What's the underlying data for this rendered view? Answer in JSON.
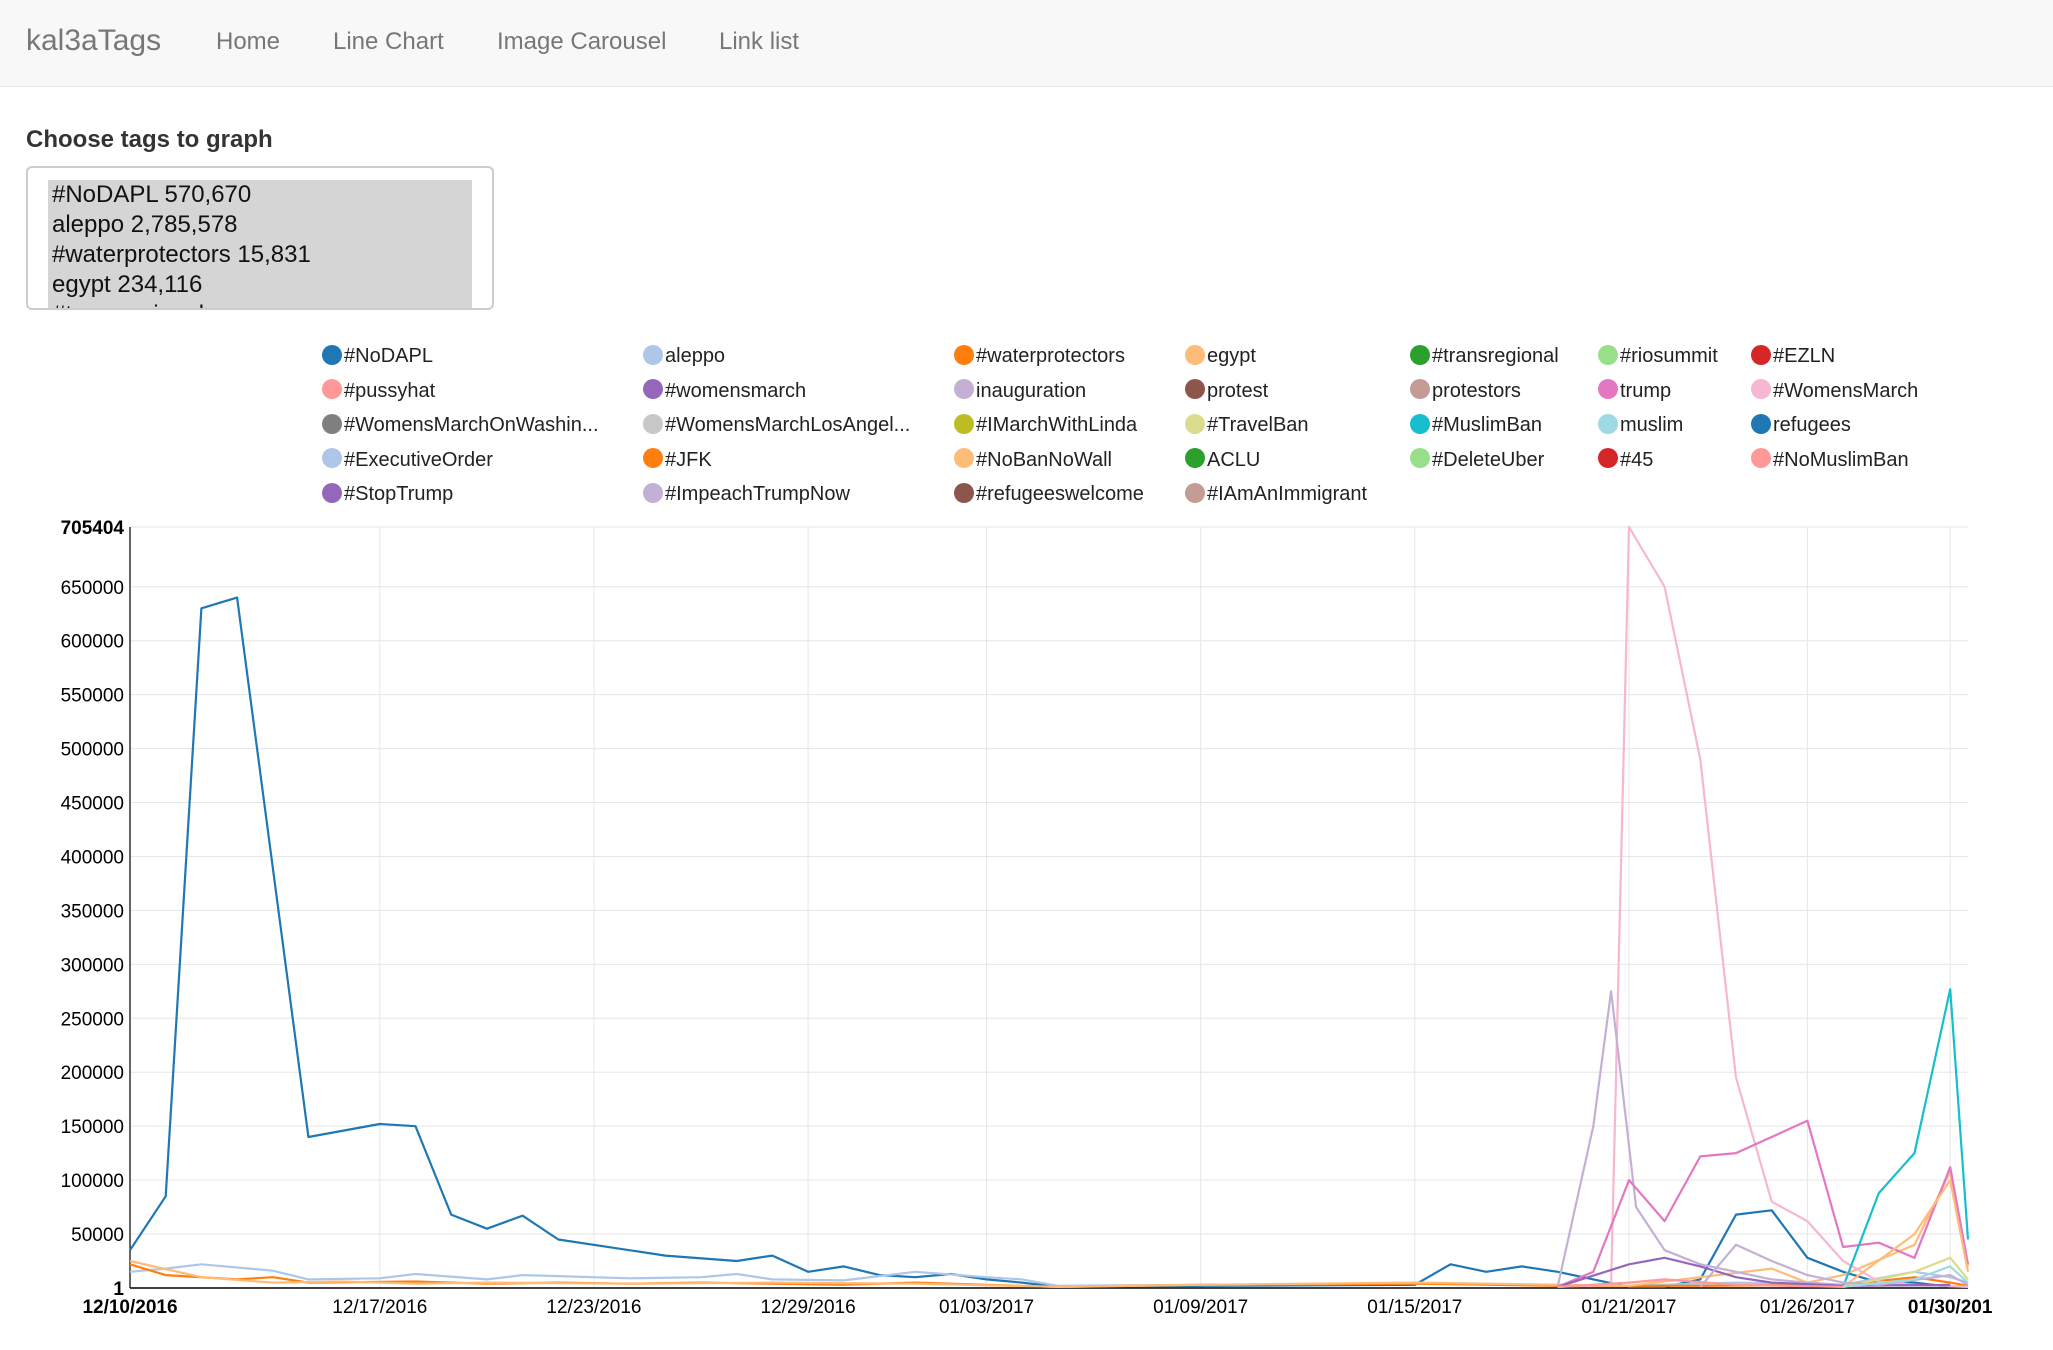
{
  "nav": {
    "brand": "kal3aTags",
    "items": [
      "Home",
      "Line Chart",
      "Image Carousel",
      "Link list"
    ]
  },
  "selector": {
    "label": "Choose tags to graph",
    "options": [
      "#NoDAPL 570,670",
      "aleppo 2,785,578",
      "#waterprotectors 15,831",
      "egypt 234,116",
      "#transregional"
    ]
  },
  "chart_data": {
    "type": "line",
    "ylim": [
      1,
      705404
    ],
    "y_ticks": [
      {
        "label": "705404",
        "value": 705404,
        "bold": true
      },
      {
        "label": "650000",
        "value": 650000
      },
      {
        "label": "600000",
        "value": 600000
      },
      {
        "label": "550000",
        "value": 550000
      },
      {
        "label": "500000",
        "value": 500000
      },
      {
        "label": "450000",
        "value": 450000
      },
      {
        "label": "400000",
        "value": 400000
      },
      {
        "label": "350000",
        "value": 350000
      },
      {
        "label": "300000",
        "value": 300000
      },
      {
        "label": "250000",
        "value": 250000
      },
      {
        "label": "200000",
        "value": 200000
      },
      {
        "label": "150000",
        "value": 150000
      },
      {
        "label": "100000",
        "value": 100000
      },
      {
        "label": "50000",
        "value": 50000
      },
      {
        "label": "1",
        "value": 1,
        "bold": true
      }
    ],
    "x_range_days": [
      0,
      51.5
    ],
    "x_ticks": [
      {
        "label": "12/10/2016",
        "day": 0,
        "bold": true
      },
      {
        "label": "12/17/2016",
        "day": 7
      },
      {
        "label": "12/23/2016",
        "day": 13
      },
      {
        "label": "12/29/2016",
        "day": 19
      },
      {
        "label": "01/03/2017",
        "day": 24
      },
      {
        "label": "01/09/2017",
        "day": 30
      },
      {
        "label": "01/15/2017",
        "day": 36
      },
      {
        "label": "01/21/2017",
        "day": 42
      },
      {
        "label": "01/26/2017",
        "day": 47
      },
      {
        "label": "01/30/201",
        "day": 51,
        "bold": true
      }
    ],
    "legend": [
      {
        "name": "#NoDAPL",
        "color": "#1f77b4"
      },
      {
        "name": "aleppo",
        "color": "#aec7e8"
      },
      {
        "name": "#waterprotectors",
        "color": "#ff7f0e"
      },
      {
        "name": "egypt",
        "color": "#ffbb78"
      },
      {
        "name": "#transregional",
        "color": "#2ca02c"
      },
      {
        "name": "#riosummit",
        "color": "#98df8a"
      },
      {
        "name": "#EZLN",
        "color": "#d62728"
      },
      {
        "name": "#pussyhat",
        "color": "#ff9896"
      },
      {
        "name": "#womensmarch",
        "color": "#9467bd"
      },
      {
        "name": "inauguration",
        "color": "#c5b0d5"
      },
      {
        "name": "protest",
        "color": "#8c564b"
      },
      {
        "name": "protestors",
        "color": "#c49c94"
      },
      {
        "name": "trump",
        "color": "#e377c2"
      },
      {
        "name": "#WomensMarch",
        "color": "#f7b6d2"
      },
      {
        "name": "#WomensMarchOnWashin...",
        "color": "#7f7f7f"
      },
      {
        "name": "#WomensMarchLosAngel...",
        "color": "#c7c7c7"
      },
      {
        "name": "#IMarchWithLinda",
        "color": "#bcbd22"
      },
      {
        "name": "#TravelBan",
        "color": "#dbdb8d"
      },
      {
        "name": "#MuslimBan",
        "color": "#17becf"
      },
      {
        "name": "muslim",
        "color": "#9edae5"
      },
      {
        "name": "refugees",
        "color": "#1f77b4"
      },
      {
        "name": "#ExecutiveOrder",
        "color": "#aec7e8"
      },
      {
        "name": "#JFK",
        "color": "#ff7f0e"
      },
      {
        "name": "#NoBanNoWall",
        "color": "#ffbb78"
      },
      {
        "name": "ACLU",
        "color": "#2ca02c"
      },
      {
        "name": "#DeleteUber",
        "color": "#98df8a"
      },
      {
        "name": "#45",
        "color": "#d62728"
      },
      {
        "name": "#NoMuslimBan",
        "color": "#ff9896"
      },
      {
        "name": "#StopTrump",
        "color": "#9467bd"
      },
      {
        "name": "#ImpeachTrumpNow",
        "color": "#c5b0d5"
      },
      {
        "name": "#refugeeswelcome",
        "color": "#8c564b"
      },
      {
        "name": "#IAmAnImmigrant",
        "color": "#c49c94"
      }
    ],
    "series": [
      {
        "name": "#NoDAPL",
        "color": "#1f77b4",
        "points": [
          [
            0,
            35000
          ],
          [
            1,
            85000
          ],
          [
            2,
            630000
          ],
          [
            3,
            640000
          ],
          [
            5,
            140000
          ],
          [
            7,
            152000
          ],
          [
            8,
            150000
          ],
          [
            9,
            68000
          ],
          [
            10,
            55000
          ],
          [
            11,
            67000
          ],
          [
            12,
            45000
          ],
          [
            15,
            30000
          ],
          [
            17,
            25000
          ],
          [
            18,
            30000
          ],
          [
            19,
            15000
          ],
          [
            20,
            20000
          ],
          [
            21,
            12000
          ],
          [
            22,
            10000
          ],
          [
            23,
            13000
          ],
          [
            24,
            8000
          ],
          [
            25,
            5000
          ],
          [
            26,
            1000
          ],
          [
            30,
            2000
          ],
          [
            36,
            3000
          ],
          [
            37,
            22000
          ],
          [
            38,
            15000
          ],
          [
            39,
            20000
          ],
          [
            40,
            15000
          ],
          [
            42,
            1000
          ],
          [
            43,
            1000
          ],
          [
            44,
            8000
          ],
          [
            45,
            68000
          ],
          [
            46,
            72000
          ],
          [
            47,
            28000
          ],
          [
            48,
            15000
          ],
          [
            49,
            5000
          ],
          [
            50,
            5000
          ],
          [
            51,
            1000
          ],
          [
            51.5,
            1000
          ]
        ]
      },
      {
        "name": "aleppo",
        "color": "#aec7e8",
        "points": [
          [
            0,
            15000
          ],
          [
            1,
            18000
          ],
          [
            2,
            22000
          ],
          [
            3,
            19000
          ],
          [
            4,
            16000
          ],
          [
            5,
            8000
          ],
          [
            7,
            9000
          ],
          [
            8,
            13000
          ],
          [
            10,
            8000
          ],
          [
            11,
            12000
          ],
          [
            12,
            11000
          ],
          [
            14,
            9000
          ],
          [
            16,
            10000
          ],
          [
            17,
            13000
          ],
          [
            18,
            8000
          ],
          [
            20,
            7000
          ],
          [
            22,
            15000
          ],
          [
            24,
            10000
          ],
          [
            25,
            8000
          ],
          [
            26,
            2000
          ],
          [
            30,
            3000
          ],
          [
            36,
            4000
          ],
          [
            40,
            3000
          ],
          [
            42,
            2000
          ],
          [
            45,
            5000
          ],
          [
            48,
            3000
          ],
          [
            50,
            15000
          ],
          [
            51,
            10000
          ],
          [
            51.5,
            5000
          ]
        ]
      },
      {
        "name": "#waterprotectors",
        "color": "#ff7f0e",
        "points": [
          [
            0,
            22000
          ],
          [
            1,
            12000
          ],
          [
            3,
            8000
          ],
          [
            4,
            10000
          ],
          [
            5,
            5000
          ],
          [
            8,
            6000
          ],
          [
            10,
            4000
          ],
          [
            12,
            5000
          ],
          [
            14,
            4000
          ],
          [
            16,
            5000
          ],
          [
            18,
            4000
          ],
          [
            20,
            3000
          ],
          [
            22,
            5000
          ],
          [
            24,
            3000
          ],
          [
            26,
            1000
          ],
          [
            30,
            3000
          ],
          [
            36,
            4000
          ],
          [
            40,
            2000
          ],
          [
            44,
            2000
          ],
          [
            48,
            3000
          ],
          [
            50,
            10000
          ],
          [
            51,
            5000
          ],
          [
            51.5,
            2000
          ]
        ]
      },
      {
        "name": "egypt",
        "color": "#ffbb78",
        "points": [
          [
            0,
            25000
          ],
          [
            2,
            10000
          ],
          [
            4,
            5000
          ],
          [
            6,
            6000
          ],
          [
            8,
            4000
          ],
          [
            10,
            5000
          ],
          [
            14,
            4000
          ],
          [
            18,
            5000
          ],
          [
            22,
            4000
          ],
          [
            26,
            1000
          ],
          [
            30,
            3000
          ],
          [
            36,
            5000
          ],
          [
            42,
            2000
          ],
          [
            46,
            18000
          ],
          [
            47,
            5000
          ],
          [
            48,
            12000
          ],
          [
            50,
            40000
          ],
          [
            51,
            108000
          ],
          [
            51.5,
            20000
          ]
        ]
      },
      {
        "name": "#WomensMarch",
        "color": "#f7b6d2",
        "points": [
          [
            40,
            1000
          ],
          [
            41.5,
            3000
          ],
          [
            42,
            705404
          ],
          [
            43,
            650000
          ],
          [
            44,
            490000
          ],
          [
            45,
            195000
          ],
          [
            46,
            80000
          ],
          [
            47,
            62000
          ],
          [
            48,
            25000
          ],
          [
            49,
            6000
          ],
          [
            50,
            3000
          ],
          [
            51,
            2000
          ],
          [
            51.5,
            1000
          ]
        ]
      },
      {
        "name": "inauguration",
        "color": "#c5b0d5",
        "points": [
          [
            40,
            1000
          ],
          [
            41,
            150000
          ],
          [
            41.5,
            275000
          ],
          [
            42.2,
            75000
          ],
          [
            43,
            35000
          ],
          [
            44,
            22000
          ],
          [
            45,
            15000
          ],
          [
            46,
            8000
          ],
          [
            47,
            5000
          ],
          [
            48,
            3000
          ],
          [
            51,
            2000
          ]
        ]
      },
      {
        "name": "trump",
        "color": "#e377c2",
        "points": [
          [
            40,
            1000
          ],
          [
            41,
            15000
          ],
          [
            42,
            100000
          ],
          [
            43,
            62000
          ],
          [
            44,
            122000
          ],
          [
            45,
            125000
          ],
          [
            47,
            155000
          ],
          [
            48,
            38000
          ],
          [
            49,
            42000
          ],
          [
            50,
            28000
          ],
          [
            51,
            112000
          ],
          [
            51.5,
            22000
          ]
        ]
      },
      {
        "name": "#womensmarch",
        "color": "#9467bd",
        "points": [
          [
            40,
            1000
          ],
          [
            42,
            22000
          ],
          [
            43,
            28000
          ],
          [
            44,
            20000
          ],
          [
            45,
            10000
          ],
          [
            46,
            5000
          ],
          [
            48,
            2000
          ],
          [
            51,
            3000
          ]
        ]
      },
      {
        "name": "#MuslimBan",
        "color": "#17becf",
        "points": [
          [
            48,
            1000
          ],
          [
            49,
            88000
          ],
          [
            50,
            125000
          ],
          [
            51,
            277000
          ],
          [
            51.5,
            45000
          ]
        ]
      },
      {
        "name": "#NoBanNoWall",
        "color": "#ffbb78",
        "points": [
          [
            48,
            1000
          ],
          [
            50,
            50000
          ],
          [
            51,
            100000
          ],
          [
            51.5,
            15000
          ]
        ]
      },
      {
        "name": "#TravelBan",
        "color": "#dbdb8d",
        "points": [
          [
            48,
            1000
          ],
          [
            50,
            15000
          ],
          [
            51,
            28000
          ],
          [
            51.5,
            8000
          ]
        ]
      },
      {
        "name": "#ImpeachTrumpNow",
        "color": "#c5b0d5",
        "points": [
          [
            44,
            1000
          ],
          [
            45,
            40000
          ],
          [
            46,
            25000
          ],
          [
            47,
            12000
          ],
          [
            48,
            5000
          ],
          [
            49,
            3000
          ],
          [
            51,
            12000
          ],
          [
            51.5,
            3000
          ]
        ]
      },
      {
        "name": "muslim",
        "color": "#9edae5",
        "points": [
          [
            48,
            1000
          ],
          [
            50,
            8000
          ],
          [
            51,
            20000
          ],
          [
            51.5,
            5000
          ]
        ]
      },
      {
        "name": "#pussyhat",
        "color": "#ff9896",
        "points": [
          [
            40,
            1000
          ],
          [
            42,
            5000
          ],
          [
            43,
            8000
          ],
          [
            45,
            3000
          ],
          [
            48,
            1000
          ]
        ]
      }
    ]
  }
}
